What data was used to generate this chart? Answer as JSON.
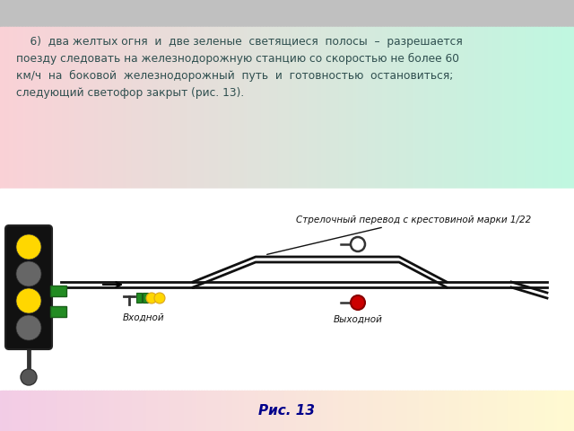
{
  "caption": "Рис. 13",
  "caption_color": "#00008B",
  "switch_label": "Стрелочный перевод с крестовиной марки 1/22",
  "entry_label": "Входной",
  "exit_closed_label": "Выходной",
  "text_color": "#2F4F4F",
  "rail_color": "#111111",
  "tl_body_color": "#111111",
  "yellow_color": "#FFD700",
  "grey_color": "#666666",
  "green_color": "#228B22",
  "red_color": "#CC0000"
}
